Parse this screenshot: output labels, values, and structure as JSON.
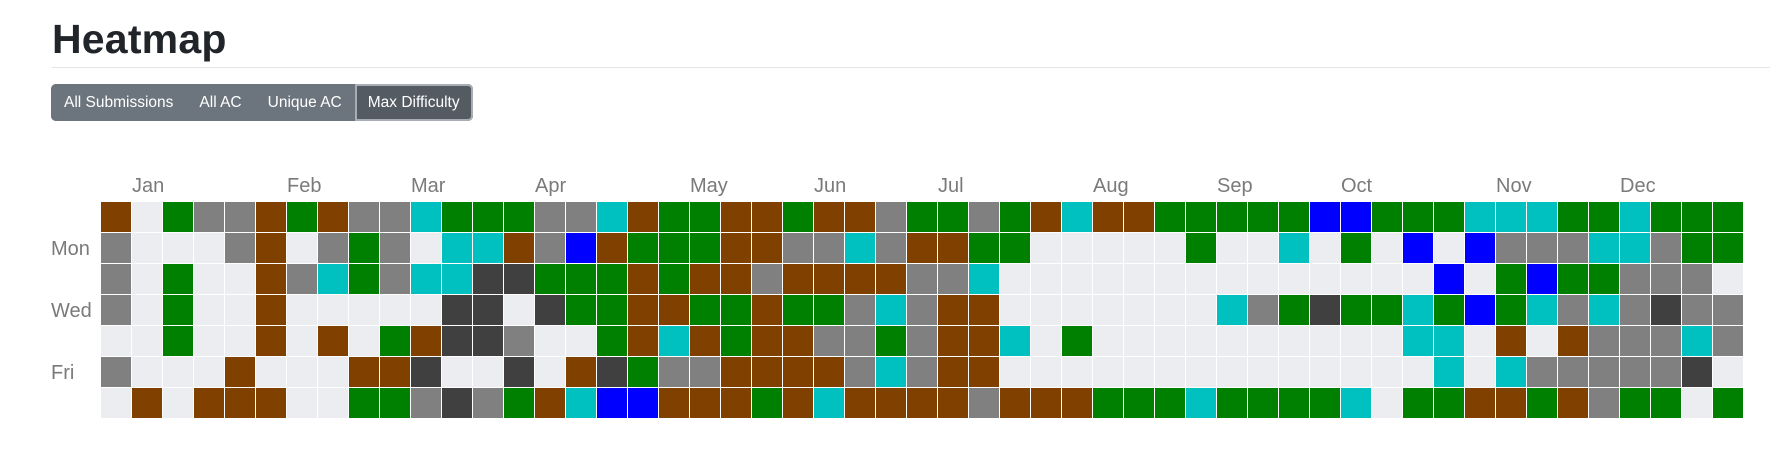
{
  "header": {
    "title": "Heatmap"
  },
  "tabs": [
    {
      "label": "All Submissions",
      "active": false
    },
    {
      "label": "All AC",
      "active": false
    },
    {
      "label": "Unique AC",
      "active": false
    },
    {
      "label": "Max Difficulty",
      "active": true
    }
  ],
  "colors": {
    "empty": "#ebedf0",
    "gray": "#808080",
    "brown": "#804000",
    "green": "#008000",
    "cyan": "#00c0c0",
    "blue": "#0000ff",
    "dark": "#404040"
  },
  "color_codes": {
    "0": "empty",
    "1": "gray",
    "2": "brown",
    "3": "green",
    "4": "cyan",
    "5": "blue",
    "6": "dark"
  },
  "chart_data": {
    "type": "heatmap",
    "months": [
      "Jan",
      "Feb",
      "Mar",
      "Apr",
      "May",
      "Jun",
      "Jul",
      "Aug",
      "Sep",
      "Oct",
      "Nov",
      "Dec"
    ],
    "month_week_index": [
      1,
      6,
      10,
      14,
      19,
      23,
      27,
      32,
      36,
      40,
      45,
      49
    ],
    "day_labels": [
      {
        "row": 1,
        "label": "Mon"
      },
      {
        "row": 3,
        "label": "Wed"
      },
      {
        "row": 5,
        "label": "Fri"
      }
    ],
    "rows": [
      "20311232114333114233223221331324223333355333444334333",
      "10001201310442152333221141223300000300403050511144133",
      "10300214314466333232212222114000000000000005035331110",
      "10300200000660633223323314122000000041363343534141611",
      "00300202032661003242322113122403000000000044020211141",
      "10002000226006026311222214122000000000000004041111160",
      "02022200331613245522232422221222333433334033223213303"
    ]
  }
}
